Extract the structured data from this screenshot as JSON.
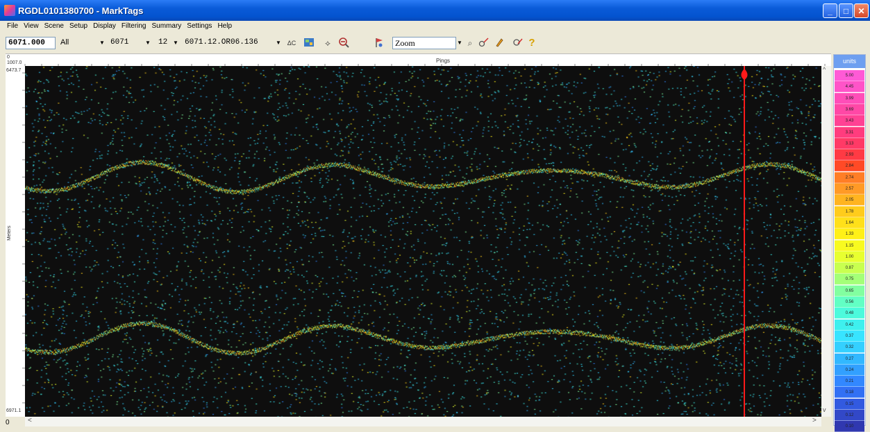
{
  "window": {
    "title": "RGDL0101380700 - MarkTags"
  },
  "menu": [
    "File",
    "View",
    "Scene",
    "Setup",
    "Display",
    "Filtering",
    "Summary",
    "Settings",
    "Help"
  ],
  "toolbar": {
    "position_value": "6071.000",
    "filter_value": "All",
    "line_value": "6071",
    "channel_value": "12",
    "file_value": "6071.12.OR06.136",
    "mode_value": "Zoom",
    "icons": [
      "hotline-icon",
      "map-icon",
      "select-tool-icon",
      "zoom-out-icon",
      "flag-icon",
      "zoom-dropdown-icon",
      "measure-icon",
      "pencil-icon",
      "tag-icon",
      "help-icon"
    ]
  },
  "ruler": {
    "title": "Pings",
    "corner_top": "0",
    "corner_value": "1007.0"
  },
  "axis": {
    "title": "Meters",
    "top_value": "6473.7",
    "bottom_value": "6971.1"
  },
  "status": {
    "value": "0"
  },
  "legend": {
    "title": "units",
    "items": [
      {
        "label": "5.00",
        "color": "#ff5ad6"
      },
      {
        "label": "4.45",
        "color": "#ff54c8"
      },
      {
        "label": "3.99",
        "color": "#ff4eb8"
      },
      {
        "label": "3.69",
        "color": "#ff48a6"
      },
      {
        "label": "3.43",
        "color": "#ff4294"
      },
      {
        "label": "3.31",
        "color": "#ff3c7e"
      },
      {
        "label": "3.13",
        "color": "#ff3a66"
      },
      {
        "label": "2.93",
        "color": "#ff3a44"
      },
      {
        "label": "2.84",
        "color": "#ff4a26"
      },
      {
        "label": "2.74",
        "color": "#ff7e26"
      },
      {
        "label": "2.57",
        "color": "#ff9a26"
      },
      {
        "label": "2.05",
        "color": "#ffb420"
      },
      {
        "label": "1.78",
        "color": "#ffcc1c"
      },
      {
        "label": "1.64",
        "color": "#ffe01a"
      },
      {
        "label": "1.33",
        "color": "#fff018"
      },
      {
        "label": "1.15",
        "color": "#f8fa20"
      },
      {
        "label": "1.00",
        "color": "#e8ff30"
      },
      {
        "label": "0.87",
        "color": "#c8ff50"
      },
      {
        "label": "0.75",
        "color": "#a4ff78"
      },
      {
        "label": "0.65",
        "color": "#82ffa0"
      },
      {
        "label": "0.56",
        "color": "#62ffc4"
      },
      {
        "label": "0.48",
        "color": "#4cfadc"
      },
      {
        "label": "0.42",
        "color": "#3ef0ee"
      },
      {
        "label": "0.37",
        "color": "#38e4ff"
      },
      {
        "label": "0.32",
        "color": "#34d0ff"
      },
      {
        "label": "0.27",
        "color": "#32b8ff"
      },
      {
        "label": "0.24",
        "color": "#32a0ff"
      },
      {
        "label": "0.21",
        "color": "#3288ff"
      },
      {
        "label": "0.18",
        "color": "#3270f4"
      },
      {
        "label": "0.15",
        "color": "#325ae0"
      },
      {
        "label": "0.12",
        "color": "#3248c8"
      },
      {
        "label": "0.10",
        "color": "#3038b0"
      }
    ]
  },
  "cursor_color": "#ff1a1a"
}
